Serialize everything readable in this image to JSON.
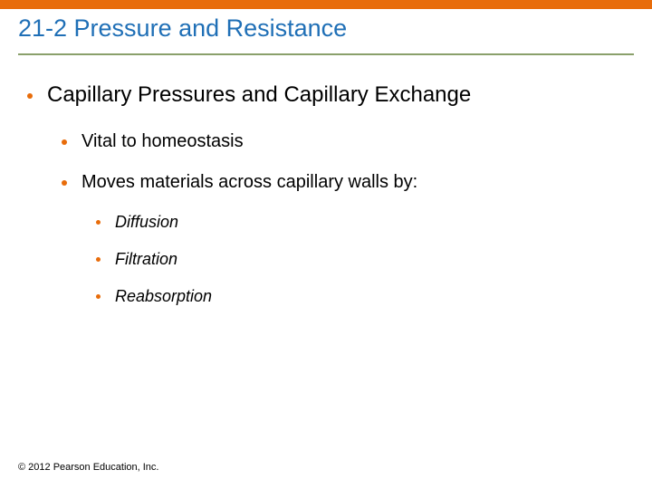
{
  "colors": {
    "accent": "#e86c0a",
    "underline": "#8aa06b",
    "title_text": "#1f6fb6",
    "bullet": "#e86c0a"
  },
  "slide": {
    "title": "21-2 Pressure and Resistance",
    "level1": "Capillary Pressures and Capillary Exchange",
    "level2a": "Vital to homeostasis",
    "level2b": "Moves materials across capillary walls by:",
    "level3a": "Diffusion",
    "level3b": "Filtration",
    "level3c": "Reabsorption",
    "footer": "© 2012 Pearson Education, Inc."
  }
}
